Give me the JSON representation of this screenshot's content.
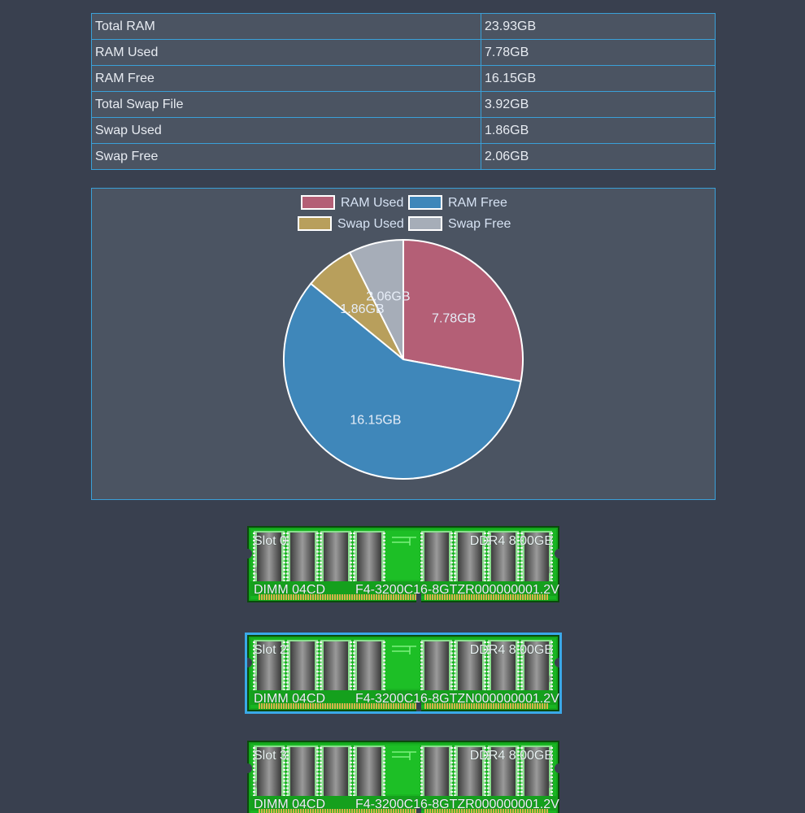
{
  "memory_table": {
    "rows": [
      {
        "label": "Total RAM",
        "value": "23.93GB"
      },
      {
        "label": "RAM Used",
        "value": "7.78GB"
      },
      {
        "label": "RAM Free",
        "value": "16.15GB"
      },
      {
        "label": "Total Swap File",
        "value": "3.92GB"
      },
      {
        "label": "Swap Used",
        "value": "1.86GB"
      },
      {
        "label": "Swap Free",
        "value": "2.06GB"
      }
    ]
  },
  "chart_data": {
    "type": "pie",
    "title": "",
    "legend_placement": "top",
    "categories": [
      "RAM Used",
      "RAM Free",
      "Swap Used",
      "Swap Free"
    ],
    "values": [
      7.78,
      16.15,
      1.86,
      2.06
    ],
    "value_labels": [
      "7.78GB",
      "16.15GB",
      "1.86GB",
      "2.06GB"
    ],
    "colors": [
      "#b45f76",
      "#3f87ba",
      "#b89f5c",
      "#a6adb8"
    ]
  },
  "modules": [
    {
      "slot": "Slot 0",
      "type": "DDR4 8.00GB",
      "form": "DIMM 04CD",
      "part": "F4-3200C16-8GTZR000000001.2V",
      "selected": false
    },
    {
      "slot": "Slot 2",
      "type": "DDR4 8.00GB",
      "form": "DIMM 04CD",
      "part": "F4-3200C16-8GTZN000000001.2V",
      "selected": true
    },
    {
      "slot": "Slot 3",
      "type": "DDR4 8.00GB",
      "form": "DIMM 04CD",
      "part": "F4-3200C16-8GTZR000000001.2V",
      "selected": false
    }
  ]
}
